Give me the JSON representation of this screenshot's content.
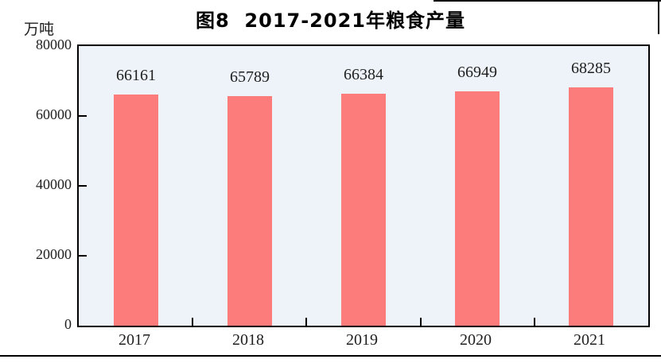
{
  "figure": {
    "title": "图8  2017-2021年粮食产量",
    "unit_label": "万吨"
  },
  "chart_data": {
    "type": "bar",
    "title": "图8  2017-2021年粮食产量",
    "categories": [
      "2017",
      "2018",
      "2019",
      "2020",
      "2021"
    ],
    "values": [
      66161,
      65789,
      66384,
      66949,
      68285
    ],
    "data_labels": [
      66161,
      65789,
      66384,
      66949,
      68285
    ],
    "xlabel": "",
    "ylabel": "万吨",
    "ylim": [
      0,
      80000
    ],
    "yticks": [
      0,
      20000,
      40000,
      60000,
      80000
    ],
    "grid": false,
    "legend_position": "none",
    "bar_color": "#fc7c7c",
    "plot_background": "#edf3f8",
    "axis_color": "#000000"
  }
}
